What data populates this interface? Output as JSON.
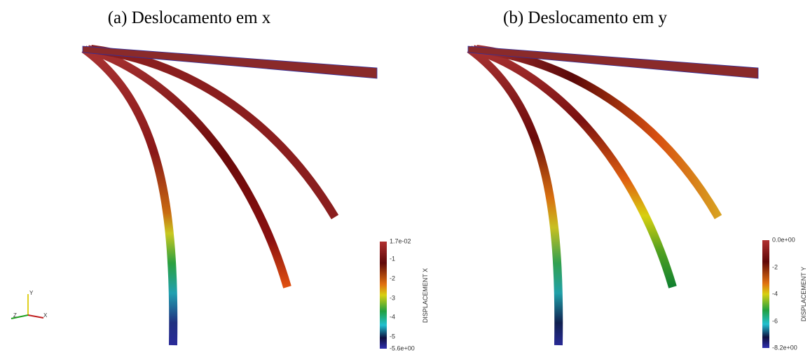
{
  "panels": [
    {
      "title": "(a) Deslocamento em x",
      "colorbar": {
        "label": "DISPLACEMENT X",
        "ticks": [
          "1.7e-02",
          "-1",
          "-2",
          "-3",
          "-4",
          "-5",
          "-5.6e+00"
        ]
      }
    },
    {
      "title": "(b) Deslocamento em y",
      "colorbar": {
        "label": "DISPLACEMENT Y",
        "ticks": [
          "0.0e+00",
          "-2",
          "-4",
          "-6",
          "-8.2e+00"
        ]
      }
    }
  ],
  "axes_triad": {
    "labels": [
      "Y",
      "Z",
      "X"
    ]
  }
}
